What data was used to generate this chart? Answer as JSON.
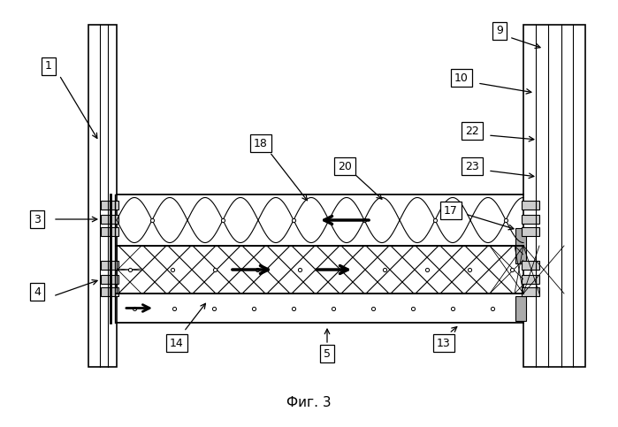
{
  "title": "Фиг. 3",
  "background": "#ffffff",
  "fig_w": 6.99,
  "fig_h": 4.83,
  "dpi": 100
}
